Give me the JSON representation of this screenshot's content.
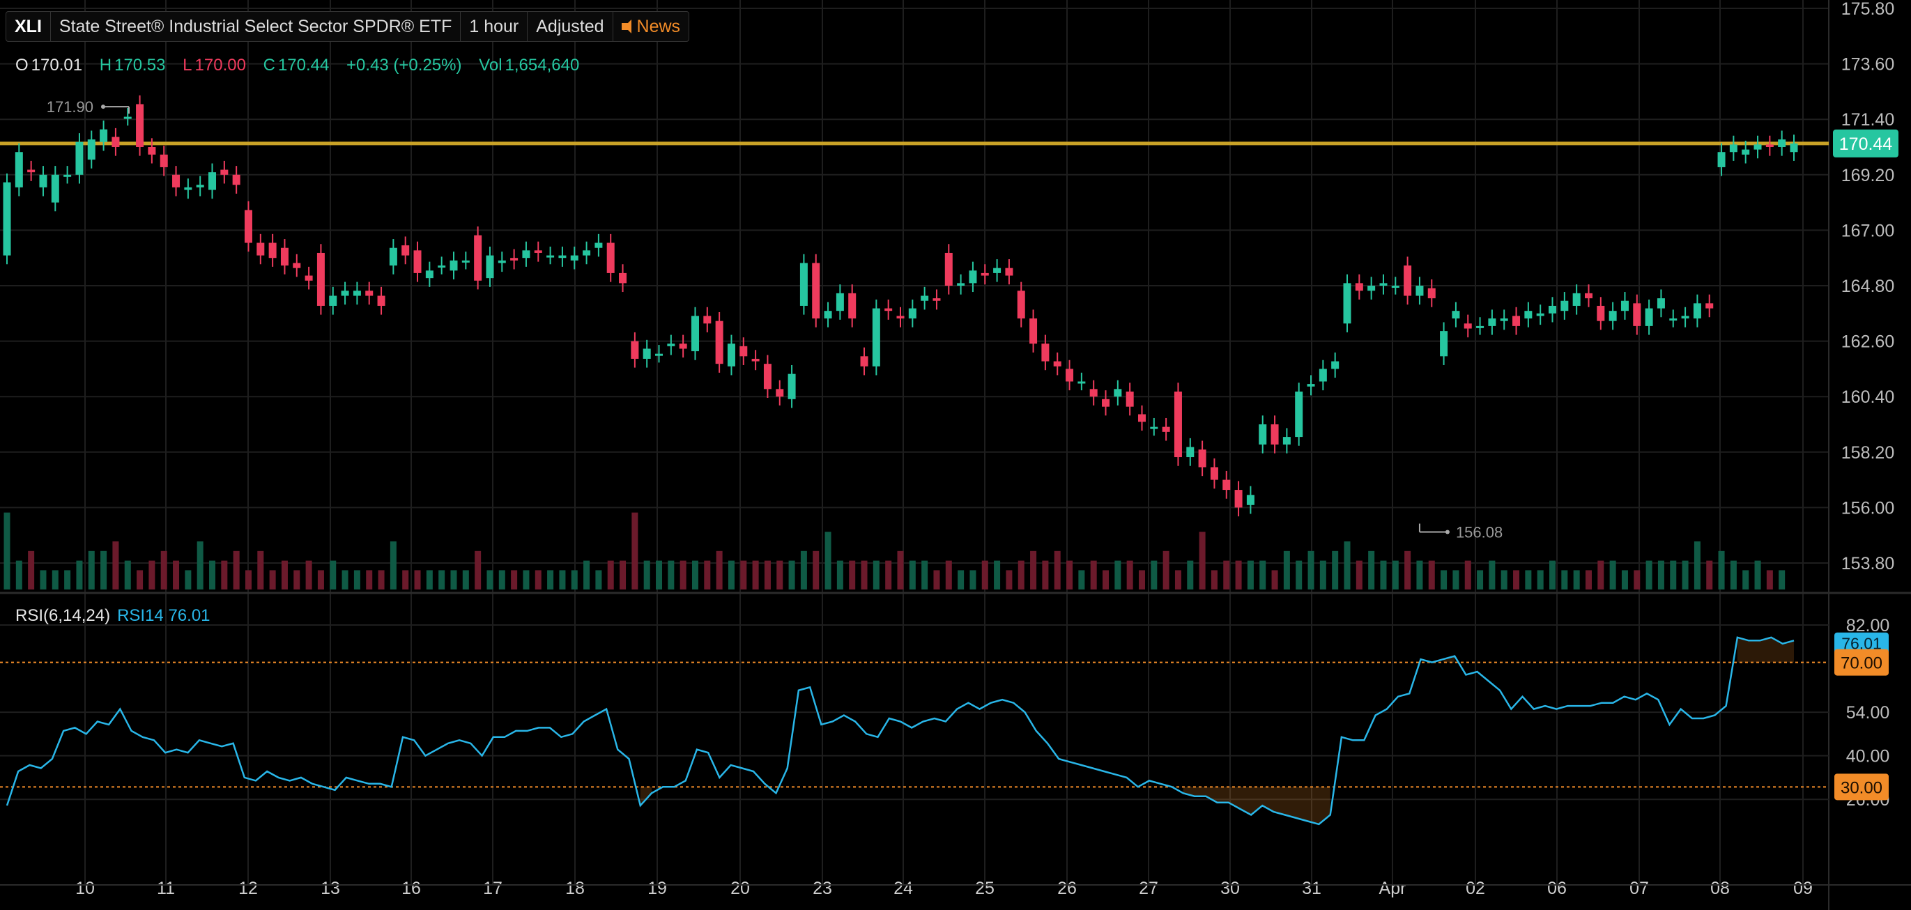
{
  "toolbar": {
    "symbol": "XLI",
    "name": "State Street® Industrial Select Sector SPDR® ETF",
    "interval": "1 hour",
    "adjusted": "Adjusted",
    "news": "News"
  },
  "ohlc": {
    "o_label": "O",
    "o": "170.01",
    "h_label": "H",
    "h": "170.53",
    "l_label": "L",
    "l": "170.00",
    "c_label": "C",
    "c": "170.44",
    "change": "+0.43 (+0.25%)",
    "vol_label": "Vol",
    "vol": "1,654,640"
  },
  "rsi": {
    "name": "RSI(6,14,24)",
    "series_label": "RSI14 76.01",
    "current": "76.01",
    "overbought": "70.00",
    "oversold": "30.00",
    "axis_ticks": [
      "82.00",
      "54.00",
      "40.00",
      "26.00"
    ]
  },
  "colors": {
    "up": "#26c6a0",
    "down": "#ef3b5d",
    "level_line": "#c9a227",
    "rsi_line": "#29b6e8",
    "rsi_level": "#f28c28",
    "grid": "#1e1e1e"
  },
  "chart_data": {
    "type": "candlestick",
    "price_axis_ticks": [
      "175.80",
      "173.60",
      "171.40",
      "169.20",
      "167.00",
      "164.80",
      "162.60",
      "160.40",
      "158.20",
      "156.00",
      "153.80"
    ],
    "price_range": [
      153.8,
      175.8
    ],
    "x_labels": [
      "10",
      "11",
      "12",
      "13",
      "16",
      "17",
      "18",
      "19",
      "20",
      "23",
      "24",
      "25",
      "26",
      "27",
      "30",
      "31",
      "Apr",
      "02",
      "06",
      "07",
      "08",
      "09"
    ],
    "current_price": "170.44",
    "horizontal_level": 170.44,
    "annotations": [
      {
        "text": "171.90",
        "value": 171.9
      },
      {
        "text": "156.08",
        "value": 156.08
      }
    ],
    "candles": [
      [
        166,
        168.9
      ],
      [
        168.7,
        170.1
      ],
      [
        169.4,
        169.3
      ],
      [
        168.7,
        169.2
      ],
      [
        168.1,
        169.2
      ],
      [
        169.2,
        169.2
      ],
      [
        169.2,
        170.5
      ],
      [
        169.8,
        170.6
      ],
      [
        170.5,
        171.0
      ],
      [
        170.7,
        170.3
      ],
      [
        171.5,
        171.5
      ],
      [
        172.0,
        170.3
      ],
      [
        170.3,
        170.0
      ],
      [
        170.0,
        169.5
      ],
      [
        169.2,
        168.7
      ],
      [
        168.6,
        168.7
      ],
      [
        168.7,
        168.8
      ],
      [
        168.6,
        169.3
      ],
      [
        169.4,
        169.2
      ],
      [
        169.2,
        168.8
      ],
      [
        167.8,
        166.5
      ],
      [
        166.5,
        166.0
      ],
      [
        166.5,
        165.9
      ],
      [
        166.3,
        165.6
      ],
      [
        165.7,
        165.5
      ],
      [
        165.2,
        165.0
      ],
      [
        166.1,
        164.0
      ],
      [
        164.0,
        164.4
      ],
      [
        164.4,
        164.6
      ],
      [
        164.4,
        164.6
      ],
      [
        164.6,
        164.4
      ],
      [
        164.4,
        164.0
      ],
      [
        165.6,
        166.3
      ],
      [
        166.4,
        166.0
      ],
      [
        166.2,
        165.3
      ],
      [
        165.1,
        165.4
      ],
      [
        165.6,
        165.6
      ],
      [
        165.4,
        165.8
      ],
      [
        165.8,
        165.8
      ],
      [
        166.8,
        165.0
      ],
      [
        165.1,
        166.0
      ],
      [
        165.7,
        165.8
      ],
      [
        165.9,
        165.8
      ],
      [
        165.9,
        166.2
      ],
      [
        166.2,
        166.1
      ],
      [
        166.0,
        166.0
      ],
      [
        165.9,
        166.0
      ],
      [
        165.8,
        166.0
      ],
      [
        166.0,
        166.2
      ],
      [
        166.3,
        166.5
      ],
      [
        166.5,
        165.3
      ],
      [
        165.3,
        164.9
      ],
      [
        162.6,
        161.9
      ],
      [
        161.9,
        162.3
      ],
      [
        162.1,
        162.1
      ],
      [
        162.4,
        162.5
      ],
      [
        162.5,
        162.3
      ],
      [
        162.2,
        163.6
      ],
      [
        163.6,
        163.3
      ],
      [
        163.4,
        161.7
      ],
      [
        161.6,
        162.5
      ],
      [
        162.4,
        162.0
      ],
      [
        161.9,
        161.8
      ],
      [
        161.7,
        160.7
      ],
      [
        160.7,
        160.4
      ],
      [
        160.3,
        161.3
      ],
      [
        164.0,
        165.7
      ],
      [
        165.7,
        163.5
      ],
      [
        163.5,
        163.8
      ],
      [
        163.8,
        164.5
      ],
      [
        164.5,
        163.5
      ],
      [
        162.0,
        161.6
      ],
      [
        161.6,
        163.9
      ],
      [
        163.9,
        163.8
      ],
      [
        163.6,
        163.5
      ],
      [
        163.5,
        163.9
      ],
      [
        164.2,
        164.4
      ],
      [
        164.3,
        164.2
      ],
      [
        166.1,
        164.8
      ],
      [
        164.8,
        164.9
      ],
      [
        164.9,
        165.4
      ],
      [
        165.3,
        165.2
      ],
      [
        165.3,
        165.5
      ],
      [
        165.5,
        165.2
      ],
      [
        164.6,
        163.5
      ],
      [
        163.5,
        162.5
      ],
      [
        162.5,
        161.8
      ],
      [
        161.8,
        161.6
      ],
      [
        161.5,
        161.0
      ],
      [
        161.0,
        161.0
      ],
      [
        160.7,
        160.4
      ],
      [
        160.3,
        160.0
      ],
      [
        160.4,
        160.7
      ],
      [
        160.6,
        160.0
      ],
      [
        159.7,
        159.4
      ],
      [
        159.2,
        159.2
      ],
      [
        159.2,
        159.0
      ],
      [
        160.6,
        158.0
      ],
      [
        158.0,
        158.4
      ],
      [
        158.3,
        157.6
      ],
      [
        157.6,
        157.1
      ],
      [
        157.1,
        156.7
      ],
      [
        156.7,
        156.0
      ],
      [
        156.1,
        156.5
      ],
      [
        158.5,
        159.3
      ],
      [
        159.3,
        158.5
      ],
      [
        158.5,
        158.8
      ],
      [
        158.8,
        160.6
      ],
      [
        160.8,
        160.9
      ],
      [
        161.0,
        161.5
      ],
      [
        161.5,
        161.8
      ],
      [
        163.3,
        164.9
      ],
      [
        164.9,
        164.6
      ],
      [
        164.6,
        164.8
      ],
      [
        164.8,
        164.9
      ],
      [
        164.8,
        164.8
      ],
      [
        165.6,
        164.4
      ],
      [
        164.4,
        164.8
      ],
      [
        164.7,
        164.3
      ],
      [
        162.0,
        163.0
      ],
      [
        163.5,
        163.8
      ],
      [
        163.3,
        163.1
      ],
      [
        163.2,
        163.2
      ],
      [
        163.2,
        163.5
      ],
      [
        163.4,
        163.5
      ],
      [
        163.6,
        163.2
      ],
      [
        163.5,
        163.8
      ],
      [
        163.6,
        163.7
      ],
      [
        163.7,
        164.0
      ],
      [
        163.8,
        164.2
      ],
      [
        164.0,
        164.5
      ],
      [
        164.5,
        164.3
      ],
      [
        164.0,
        163.4
      ],
      [
        163.4,
        163.8
      ],
      [
        163.8,
        164.2
      ],
      [
        164.1,
        163.2
      ],
      [
        163.2,
        163.9
      ],
      [
        163.9,
        164.3
      ],
      [
        163.5,
        163.5
      ],
      [
        163.5,
        163.6
      ],
      [
        163.5,
        164.1
      ],
      [
        164.1,
        163.9
      ],
      [
        169.5,
        170.1
      ],
      [
        170.1,
        170.4
      ],
      [
        170.0,
        170.2
      ],
      [
        170.2,
        170.4
      ],
      [
        170.4,
        170.3
      ],
      [
        170.3,
        170.6
      ],
      [
        170.1,
        170.44
      ]
    ],
    "volume_fraction": [
      0.8,
      0.3,
      0.4,
      0.2,
      0.2,
      0.2,
      0.3,
      0.4,
      0.4,
      0.5,
      0.3,
      0.2,
      0.3,
      0.4,
      0.3,
      0.2,
      0.5,
      0.3,
      0.3,
      0.4,
      0.2,
      0.4,
      0.2,
      0.3,
      0.2,
      0.3,
      0.2,
      0.3,
      0.2,
      0.2,
      0.2,
      0.2,
      0.5,
      0.2,
      0.2,
      0.2,
      0.2,
      0.2,
      0.2,
      0.4,
      0.2,
      0.2,
      0.2,
      0.2,
      0.2,
      0.2,
      0.2,
      0.2,
      0.3,
      0.2,
      0.3,
      0.3,
      0.8,
      0.3,
      0.3,
      0.3,
      0.3,
      0.3,
      0.3,
      0.4,
      0.3,
      0.3,
      0.3,
      0.3,
      0.3,
      0.3,
      0.4,
      0.4,
      0.6,
      0.3,
      0.3,
      0.3,
      0.3,
      0.3,
      0.4,
      0.3,
      0.3,
      0.2,
      0.3,
      0.2,
      0.2,
      0.3,
      0.3,
      0.2,
      0.3,
      0.4,
      0.3,
      0.4,
      0.3,
      0.2,
      0.3,
      0.2,
      0.3,
      0.3,
      0.2,
      0.3,
      0.4,
      0.2,
      0.3,
      0.6,
      0.2,
      0.3,
      0.3,
      0.3,
      0.3,
      0.2,
      0.4,
      0.3,
      0.4,
      0.3,
      0.4,
      0.5,
      0.3,
      0.4,
      0.3,
      0.3,
      0.4,
      0.3,
      0.3,
      0.2,
      0.2,
      0.3,
      0.2,
      0.3,
      0.2,
      0.2,
      0.2,
      0.2,
      0.3,
      0.2,
      0.2,
      0.2,
      0.3,
      0.3,
      0.2,
      0.2,
      0.3,
      0.3,
      0.3,
      0.3,
      0.5,
      0.3,
      0.4,
      0.3,
      0.2,
      0.3,
      0.2,
      0.2
    ],
    "rsi_range": [
      20,
      84
    ],
    "rsi": [
      24,
      35,
      37,
      36,
      39,
      48,
      49,
      47,
      51,
      50,
      55,
      48,
      46,
      45,
      41,
      42,
      41,
      45,
      44,
      43,
      44,
      33,
      32,
      35,
      33,
      32,
      33,
      31,
      30,
      29,
      33,
      32,
      31,
      31,
      30,
      46,
      45,
      40,
      42,
      44,
      45,
      44,
      40,
      46,
      46,
      48,
      48,
      49,
      49,
      46,
      47,
      51,
      53,
      55,
      42,
      39,
      24,
      28,
      30,
      30,
      32,
      42,
      41,
      33,
      37,
      36,
      35,
      31,
      28,
      36,
      61,
      62,
      50,
      51,
      53,
      51,
      47,
      46,
      52,
      51,
      49,
      51,
      52,
      51,
      55,
      57,
      55,
      57,
      58,
      57,
      54,
      48,
      44,
      39,
      38,
      37,
      36,
      35,
      34,
      33,
      30,
      32,
      31,
      30,
      28,
      27,
      27,
      25,
      25,
      23,
      21,
      24,
      22,
      21,
      20,
      19,
      18,
      21,
      46,
      45,
      45,
      53,
      55,
      59,
      60,
      71,
      70,
      71,
      72,
      66,
      67,
      64,
      61,
      55,
      59,
      55,
      56,
      55,
      56,
      56,
      56,
      57,
      57,
      59,
      58,
      60,
      58,
      50,
      55,
      52,
      52,
      53,
      56,
      78,
      77,
      77,
      78,
      76,
      77
    ]
  }
}
